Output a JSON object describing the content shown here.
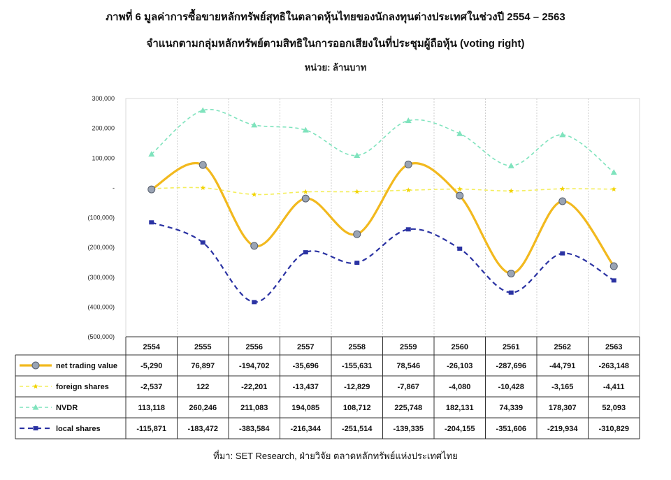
{
  "title_line1": "ภาพที่ 6 มูลค่าการซื้อขายหลักทรัพย์สุทธิในตลาดหุ้นไทยของนักลงทุนต่างประเทศในช่วงปี 2554 – 2563",
  "title_line2": "จำแนกตามกลุ่มหลักทรัพย์ตามสิทธิในการออกเสียงในที่ประชุมผู้ถือหุ้น (voting right)",
  "unit": "หน่วย: ล้านบาท",
  "source": "ที่มา: SET Research, ฝ่ายวิจัย ตลาดหลักทรัพย์แห่งประเทศไทย",
  "chart_data": {
    "type": "line",
    "categories": [
      "2554",
      "2555",
      "2556",
      "2557",
      "2558",
      "2559",
      "2560",
      "2561",
      "2562",
      "2563"
    ],
    "ylim": [
      -500000,
      300000
    ],
    "yticks": [
      300000,
      200000,
      100000,
      0,
      -100000,
      -200000,
      -300000,
      -400000,
      -500000
    ],
    "ytick_labels": [
      "300,000",
      "200,000",
      "100,000",
      "-",
      "(100,000)",
      "(200,000)",
      "(300,000)",
      "(400,000)",
      "(500,000)"
    ],
    "grid": "vertical",
    "legend": "data-table",
    "series": [
      {
        "name": "net trading value",
        "color": "#f2b91e",
        "marker": "circle",
        "values": [
          -5290,
          76897,
          -194702,
          -35696,
          -155631,
          78546,
          -26103,
          -287696,
          -44791,
          -263148
        ],
        "labels": [
          "-5,290",
          "76,897",
          "-194,702",
          "-35,696",
          "-155,631",
          "78,546",
          "-26,103",
          "-287,696",
          "-44,791",
          "-263,148"
        ]
      },
      {
        "name": "foreign shares",
        "color": "#f4ee5c",
        "marker": "star",
        "values": [
          -2537,
          122,
          -22201,
          -13437,
          -12829,
          -7867,
          -4080,
          -10428,
          -3165,
          -4411
        ],
        "labels": [
          "-2,537",
          "122",
          "-22,201",
          "-13,437",
          "-12,829",
          "-7,867",
          "-4,080",
          "-10,428",
          "-3,165",
          "-4,411"
        ]
      },
      {
        "name": "NVDR",
        "color": "#7fe3bd",
        "marker": "triangle",
        "values": [
          113118,
          260246,
          211083,
          194085,
          108712,
          225748,
          182131,
          74339,
          178307,
          52093
        ],
        "labels": [
          "113,118",
          "260,246",
          "211,083",
          "194,085",
          "108,712",
          "225,748",
          "182,131",
          "74,339",
          "178,307",
          "52,093"
        ]
      },
      {
        "name": "local shares",
        "color": "#2b33a3",
        "marker": "square",
        "values": [
          -115871,
          -183472,
          -383584,
          -216344,
          -251514,
          -139335,
          -204155,
          -351606,
          -219934,
          -310829
        ],
        "labels": [
          "-115,871",
          "-183,472",
          "-383,584",
          "-216,344",
          "-251,514",
          "-139,335",
          "-204,155",
          "-351,606",
          "-219,934",
          "-310,829"
        ]
      }
    ]
  }
}
